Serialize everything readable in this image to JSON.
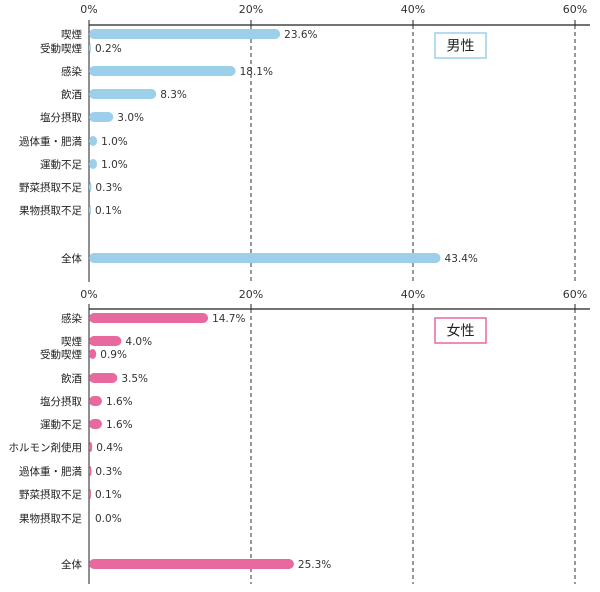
{
  "chart_data": [
    {
      "type": "bar",
      "orientation": "horizontal",
      "legend": "男性",
      "color": "#9ccfea",
      "legend_border_color": "#9ccfea",
      "xlim": [
        0,
        60
      ],
      "ticks": [
        "0%",
        "20%",
        "40%",
        "60%"
      ],
      "tick_values": [
        0,
        20,
        40,
        60
      ],
      "grid": "dashed vertical lines at 20%, 40%, 60%",
      "rows": [
        {
          "label": "喫煙",
          "value": 23.6,
          "text": "23.6%"
        },
        {
          "label": "受動喫煙",
          "value": 0.2,
          "text": "0.2%"
        },
        {
          "label": "感染",
          "value": 18.1,
          "text": "18.1%"
        },
        {
          "label": "飲酒",
          "value": 8.3,
          "text": "8.3%"
        },
        {
          "label": "塩分摂取",
          "value": 3.0,
          "text": "3.0%"
        },
        {
          "label": "過体重・肥満",
          "value": 1.0,
          "text": "1.0%"
        },
        {
          "label": "運動不足",
          "value": 1.0,
          "text": "1.0%"
        },
        {
          "label": "野菜摂取不足",
          "value": 0.3,
          "text": "0.3%"
        },
        {
          "label": "果物摂取不足",
          "value": 0.1,
          "text": "0.1%"
        },
        {
          "label": "全体",
          "value": 43.4,
          "text": "43.4%"
        }
      ]
    },
    {
      "type": "bar",
      "orientation": "horizontal",
      "legend": "女性",
      "color": "#e8699e",
      "legend_border_color": "#e8699e",
      "xlim": [
        0,
        60
      ],
      "ticks": [
        "0%",
        "20%",
        "40%",
        "60%"
      ],
      "tick_values": [
        0,
        20,
        40,
        60
      ],
      "grid": "dashed vertical lines at 20%, 40%, 60%",
      "rows": [
        {
          "label": "感染",
          "value": 14.7,
          "text": "14.7%"
        },
        {
          "label": "喫煙",
          "value": 4.0,
          "text": "4.0%"
        },
        {
          "label": "受動喫煙",
          "value": 0.9,
          "text": "0.9%"
        },
        {
          "label": "飲酒",
          "value": 3.5,
          "text": "3.5%"
        },
        {
          "label": "塩分摂取",
          "value": 1.6,
          "text": "1.6%"
        },
        {
          "label": "運動不足",
          "value": 1.6,
          "text": "1.6%"
        },
        {
          "label": "ホルモン剤使用",
          "value": 0.4,
          "text": "0.4%"
        },
        {
          "label": "過体重・肥満",
          "value": 0.3,
          "text": "0.3%"
        },
        {
          "label": "野菜摂取不足",
          "value": 0.1,
          "text": "0.1%"
        },
        {
          "label": "果物摂取不足",
          "value": 0.0,
          "text": "0.0%"
        },
        {
          "label": "全体",
          "value": 25.3,
          "text": "25.3%"
        }
      ]
    }
  ]
}
